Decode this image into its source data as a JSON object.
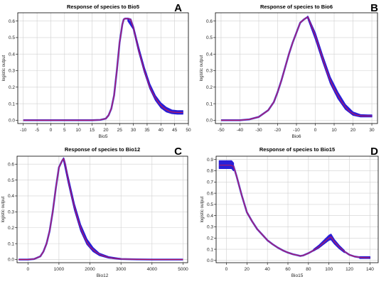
{
  "panel_letter_color": "#000000",
  "colors": {
    "band": "#2a1fd6",
    "mean": "#c0185a",
    "grid": "#d0d0d0",
    "axis": "#000000"
  },
  "chart_data": [
    {
      "type": "line",
      "panel": "A",
      "title": "Response of species to Bio5",
      "xlabel": "Bio5",
      "ylabel": "logistic output",
      "xlim": [
        -12,
        50
      ],
      "ylim": [
        -0.02,
        0.65
      ],
      "xticks": [
        -10,
        -5,
        0,
        5,
        10,
        15,
        20,
        25,
        30,
        35,
        40,
        45,
        50
      ],
      "yticks": [
        0.0,
        0.1,
        0.2,
        0.3,
        0.4,
        0.5,
        0.6
      ],
      "grid": true,
      "series": [
        {
          "role": "mean",
          "x": [
            -10,
            0,
            10,
            15,
            18,
            20,
            21,
            22,
            23,
            24,
            25,
            26,
            26.5,
            27,
            28,
            29,
            30,
            31,
            32,
            33,
            34,
            35,
            36,
            37,
            38,
            39,
            40,
            41,
            42,
            43,
            44,
            45,
            47,
            48
          ],
          "y": [
            0.0,
            0.0,
            0.0,
            0.0,
            0.002,
            0.01,
            0.03,
            0.07,
            0.15,
            0.3,
            0.47,
            0.58,
            0.61,
            0.615,
            0.615,
            0.61,
            0.56,
            0.49,
            0.42,
            0.36,
            0.3,
            0.25,
            0.2,
            0.165,
            0.135,
            0.11,
            0.09,
            0.075,
            0.063,
            0.055,
            0.05,
            0.048,
            0.047,
            0.047
          ]
        },
        {
          "role": "band",
          "x": [
            28,
            30,
            32,
            34,
            36,
            38,
            40,
            42,
            44,
            46,
            48
          ],
          "lower": [
            0.6,
            0.55,
            0.41,
            0.29,
            0.19,
            0.12,
            0.075,
            0.05,
            0.04,
            0.037,
            0.037
          ],
          "upper": [
            0.615,
            0.57,
            0.44,
            0.32,
            0.22,
            0.15,
            0.105,
            0.078,
            0.062,
            0.058,
            0.058
          ]
        }
      ]
    },
    {
      "type": "line",
      "panel": "B",
      "title": "Response of species to Bio6",
      "xlabel": "Bio6",
      "ylabel": "logistic output",
      "xlim": [
        -53,
        33
      ],
      "ylim": [
        -0.02,
        0.65
      ],
      "xticks": [
        -50,
        -40,
        -30,
        -20,
        -10,
        0,
        10,
        20,
        30
      ],
      "yticks": [
        0.0,
        0.1,
        0.2,
        0.3,
        0.4,
        0.5,
        0.6
      ],
      "grid": true,
      "series": [
        {
          "role": "mean",
          "x": [
            -50,
            -40,
            -35,
            -30,
            -25,
            -22,
            -20,
            -18,
            -16,
            -14,
            -12,
            -10,
            -8,
            -6,
            -4,
            -2,
            0,
            2,
            4,
            6,
            8,
            10,
            12,
            14,
            16,
            18,
            20,
            22,
            24,
            26,
            28,
            30
          ],
          "y": [
            0.0,
            0.0,
            0.005,
            0.02,
            0.06,
            0.11,
            0.17,
            0.24,
            0.32,
            0.4,
            0.47,
            0.53,
            0.59,
            0.61,
            0.625,
            0.57,
            0.51,
            0.44,
            0.37,
            0.3,
            0.24,
            0.19,
            0.15,
            0.11,
            0.08,
            0.055,
            0.04,
            0.03,
            0.027,
            0.026,
            0.026,
            0.026
          ]
        },
        {
          "role": "band",
          "x": [
            -4,
            0,
            4,
            8,
            12,
            16,
            20,
            24,
            28,
            30
          ],
          "lower": [
            0.615,
            0.49,
            0.35,
            0.22,
            0.13,
            0.065,
            0.03,
            0.02,
            0.02,
            0.02
          ],
          "upper": [
            0.63,
            0.53,
            0.39,
            0.26,
            0.17,
            0.095,
            0.05,
            0.034,
            0.032,
            0.032
          ]
        }
      ]
    },
    {
      "type": "line",
      "panel": "C",
      "title": "Response of species to Bio12",
      "xlabel": "Bio12",
      "ylabel": "logistic output",
      "xlim": [
        -350,
        5150
      ],
      "ylim": [
        -0.02,
        0.65
      ],
      "xticks": [
        0,
        1000,
        2000,
        3000,
        4000,
        5000
      ],
      "yticks": [
        0.0,
        0.1,
        0.2,
        0.3,
        0.4,
        0.5,
        0.6
      ],
      "grid": true,
      "series": [
        {
          "role": "mean",
          "x": [
            -300,
            0,
            200,
            400,
            500,
            600,
            700,
            800,
            900,
            1000,
            1100,
            1150,
            1200,
            1300,
            1400,
            1500,
            1600,
            1700,
            1800,
            1900,
            2000,
            2200,
            2400,
            2600,
            2800,
            3000,
            3500,
            4000,
            5000
          ],
          "y": [
            0.0,
            0.0,
            0.003,
            0.02,
            0.05,
            0.1,
            0.18,
            0.3,
            0.45,
            0.58,
            0.62,
            0.635,
            0.6,
            0.5,
            0.41,
            0.33,
            0.26,
            0.2,
            0.15,
            0.11,
            0.08,
            0.045,
            0.025,
            0.013,
            0.007,
            0.003,
            0.001,
            0.0,
            0.0
          ]
        },
        {
          "role": "band",
          "x": [
            1150,
            1300,
            1500,
            1700,
            1900,
            2100,
            2300,
            2600,
            3000
          ],
          "lower": [
            0.62,
            0.48,
            0.31,
            0.18,
            0.095,
            0.05,
            0.025,
            0.009,
            0.002
          ],
          "upper": [
            0.64,
            0.52,
            0.35,
            0.22,
            0.13,
            0.075,
            0.04,
            0.018,
            0.006
          ]
        }
      ]
    },
    {
      "type": "line",
      "panel": "D",
      "title": "Response of species to Bio15",
      "xlabel": "Bio15",
      "ylabel": "logistic output",
      "xlim": [
        -10,
        148
      ],
      "ylim": [
        -0.02,
        0.93
      ],
      "xticks": [
        0,
        20,
        40,
        60,
        80,
        100,
        120,
        140
      ],
      "yticks": [
        0.0,
        0.1,
        0.2,
        0.3,
        0.4,
        0.5,
        0.6,
        0.7,
        0.8,
        0.9
      ],
      "grid": true,
      "series": [
        {
          "role": "mean",
          "x": [
            -7,
            0,
            4,
            7,
            10,
            15,
            20,
            25,
            30,
            35,
            40,
            45,
            50,
            55,
            60,
            65,
            70,
            72,
            75,
            80,
            85,
            90,
            95,
            100,
            102,
            105,
            110,
            115,
            120,
            125,
            130,
            135,
            140
          ],
          "y": [
            0.85,
            0.85,
            0.85,
            0.84,
            0.75,
            0.58,
            0.43,
            0.35,
            0.28,
            0.23,
            0.18,
            0.145,
            0.115,
            0.09,
            0.07,
            0.055,
            0.045,
            0.04,
            0.045,
            0.065,
            0.09,
            0.12,
            0.16,
            0.2,
            0.21,
            0.17,
            0.12,
            0.08,
            0.05,
            0.035,
            0.028,
            0.025,
            0.025
          ]
        },
        {
          "role": "band",
          "x": [
            -7,
            -2,
            2,
            5,
            7
          ],
          "lower": [
            0.82,
            0.82,
            0.82,
            0.82,
            0.8
          ],
          "upper": [
            0.89,
            0.89,
            0.89,
            0.89,
            0.87
          ]
        },
        {
          "role": "band",
          "x": [
            85,
            90,
            95,
            100,
            102,
            105,
            110,
            115
          ],
          "lower": [
            0.085,
            0.11,
            0.145,
            0.18,
            0.185,
            0.15,
            0.105,
            0.07
          ],
          "upper": [
            0.1,
            0.135,
            0.18,
            0.225,
            0.235,
            0.19,
            0.135,
            0.09
          ]
        },
        {
          "role": "band",
          "x": [
            130,
            135,
            140
          ],
          "lower": [
            0.018,
            0.018,
            0.018
          ],
          "upper": [
            0.034,
            0.034,
            0.034
          ]
        }
      ]
    }
  ]
}
